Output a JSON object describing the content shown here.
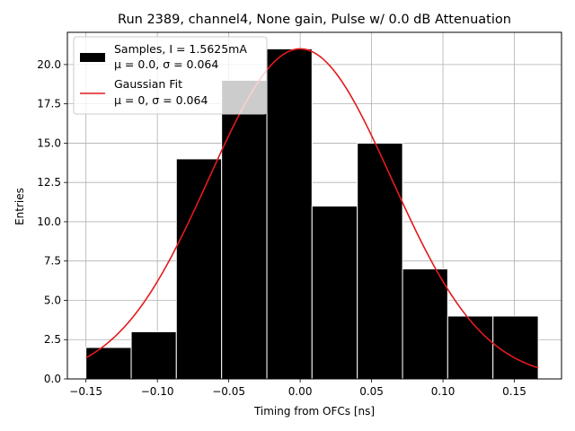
{
  "chart_data": {
    "type": "bar",
    "title": "Run 2389, channel4, None gain, Pulse w/ 0.0 dB Attenuation",
    "xlabel": "Timing from OFCs [ns]",
    "ylabel": "Entries",
    "xlim": [
      -0.163,
      0.183
    ],
    "ylim": [
      0,
      22.05
    ],
    "grid": true,
    "x_ticks": [
      -0.15,
      -0.1,
      -0.05,
      0.0,
      0.05,
      0.1,
      0.15
    ],
    "x_tick_labels": [
      "−0.15",
      "−0.10",
      "−0.05",
      "0.00",
      "0.05",
      "0.10",
      "0.15"
    ],
    "y_ticks": [
      0,
      2.5,
      5,
      7.5,
      10,
      12.5,
      15,
      17.5,
      20
    ],
    "y_tick_labels": [
      "0.0",
      "2.5",
      "5.0",
      "7.5",
      "10.0",
      "12.5",
      "15.0",
      "17.5",
      "20.0"
    ],
    "bins": [
      {
        "x0": -0.15,
        "x1": -0.1183,
        "value": 2
      },
      {
        "x0": -0.1183,
        "x1": -0.0867,
        "value": 3
      },
      {
        "x0": -0.0867,
        "x1": -0.055,
        "value": 14
      },
      {
        "x0": -0.055,
        "x1": -0.0233,
        "value": 19
      },
      {
        "x0": -0.0233,
        "x1": 0.0083,
        "value": 21
      },
      {
        "x0": 0.0083,
        "x1": 0.04,
        "value": 11
      },
      {
        "x0": 0.04,
        "x1": 0.0717,
        "value": 15
      },
      {
        "x0": 0.0717,
        "x1": 0.1033,
        "value": 7
      },
      {
        "x0": 0.1033,
        "x1": 0.135,
        "value": 4
      },
      {
        "x0": 0.135,
        "x1": 0.1667,
        "value": 4
      }
    ],
    "fit": {
      "type": "gaussian",
      "amplitude": 21.0,
      "mu": 0.0,
      "sigma": 0.064,
      "x_range": [
        -0.15,
        0.1667
      ]
    },
    "legend": {
      "placement": "upper-left",
      "entries": [
        {
          "kind": "bar",
          "line1": "Samples, I = 1.5625mA",
          "line2": "μ = 0.0, σ = 0.064"
        },
        {
          "kind": "line",
          "line1": "Gaussian Fit",
          "line2": "μ = 0, σ = 0.064"
        }
      ]
    },
    "colors": {
      "bars": "#000000",
      "bar_edge": "#ffffff",
      "fit": "#e41a1c",
      "grid": "#b0b0b0",
      "axes": "#000000"
    }
  }
}
